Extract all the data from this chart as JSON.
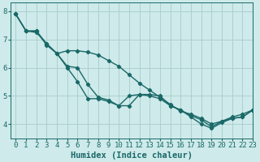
{
  "xlabel": "Humidex (Indice chaleur)",
  "ylabel": "",
  "xlim": [
    -0.5,
    23
  ],
  "ylim": [
    3.5,
    8.3
  ],
  "bg_color": "#ceeaea",
  "grid_color": "#a8cccc",
  "line_color": "#1a6868",
  "lines": [
    [
      7.9,
      7.3,
      7.25,
      6.85,
      6.5,
      6.6,
      6.6,
      6.55,
      6.45,
      6.25,
      6.05,
      5.75,
      5.45,
      5.2,
      4.95,
      4.7,
      4.45,
      4.35,
      4.2,
      4.0,
      4.1,
      4.25,
      4.35,
      4.5
    ],
    [
      7.9,
      7.3,
      7.3,
      6.85,
      6.5,
      6.05,
      6.0,
      5.4,
      4.95,
      4.85,
      4.65,
      4.65,
      5.05,
      5.05,
      5.0,
      4.65,
      4.5,
      4.3,
      4.15,
      3.9,
      4.1,
      4.2,
      4.25,
      4.5
    ],
    [
      7.9,
      7.3,
      7.3,
      6.8,
      6.5,
      6.0,
      5.5,
      4.9,
      4.9,
      4.8,
      4.65,
      5.0,
      5.05,
      5.0,
      4.9,
      4.65,
      4.5,
      4.25,
      4.0,
      3.85,
      4.05,
      4.2,
      4.25,
      4.5
    ]
  ],
  "xticks": [
    0,
    1,
    2,
    3,
    4,
    5,
    6,
    7,
    8,
    9,
    10,
    11,
    12,
    13,
    14,
    15,
    16,
    17,
    18,
    19,
    20,
    21,
    22,
    23
  ],
  "yticks": [
    4,
    5,
    6,
    7,
    8
  ],
  "marker": "D",
  "marker_size": 2.2,
  "line_width": 1.0,
  "font_size": 6.5
}
